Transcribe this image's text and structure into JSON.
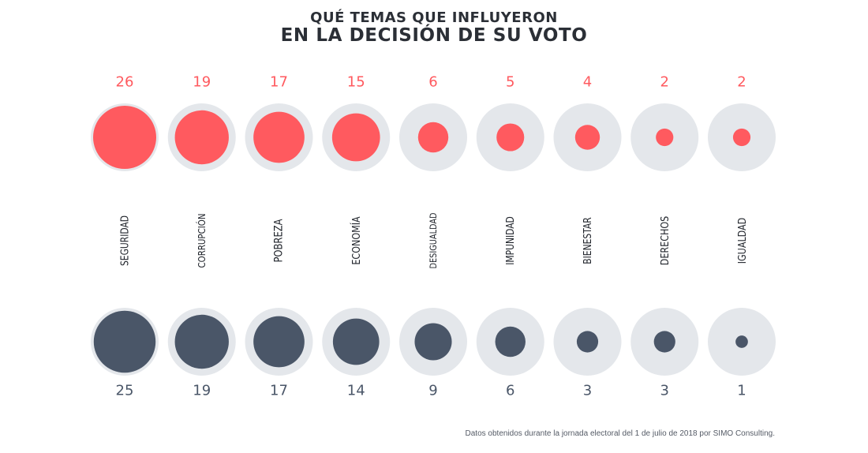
{
  "header": {
    "subtitle": "QUÉ TEMAS QUE INFLUYERON",
    "title": "EN LA DECISIÓN DE SU VOTO"
  },
  "footnote": "Datos obtenidos durante la jornada electoral del 1 de julio de 2018 por SIMO Consulting.",
  "chart_data": {
    "type": "bubble",
    "title": "EN LA DECISIÓN DE SU VOTO",
    "subtitle": "QUÉ TEMAS QUE INFLUYERON",
    "categories": [
      "SEGURIDAD",
      "CORRUPCIÓN",
      "POBREZA",
      "ECONOMÍA",
      "DESIGUALDAD",
      "IMPUNIDAD",
      "BIENESTAR",
      "DERECHOS",
      "IGUALDAD"
    ],
    "series": [
      {
        "name": "top",
        "color": "#ff5a5f",
        "values": [
          26,
          19,
          17,
          15,
          6,
          5,
          4,
          2,
          2
        ]
      },
      {
        "name": "bottom",
        "color": "#4a5668",
        "values": [
          25,
          19,
          17,
          14,
          9,
          6,
          3,
          3,
          1
        ]
      }
    ],
    "background_circle_color": "#e4e7eb",
    "max_value": 26
  }
}
